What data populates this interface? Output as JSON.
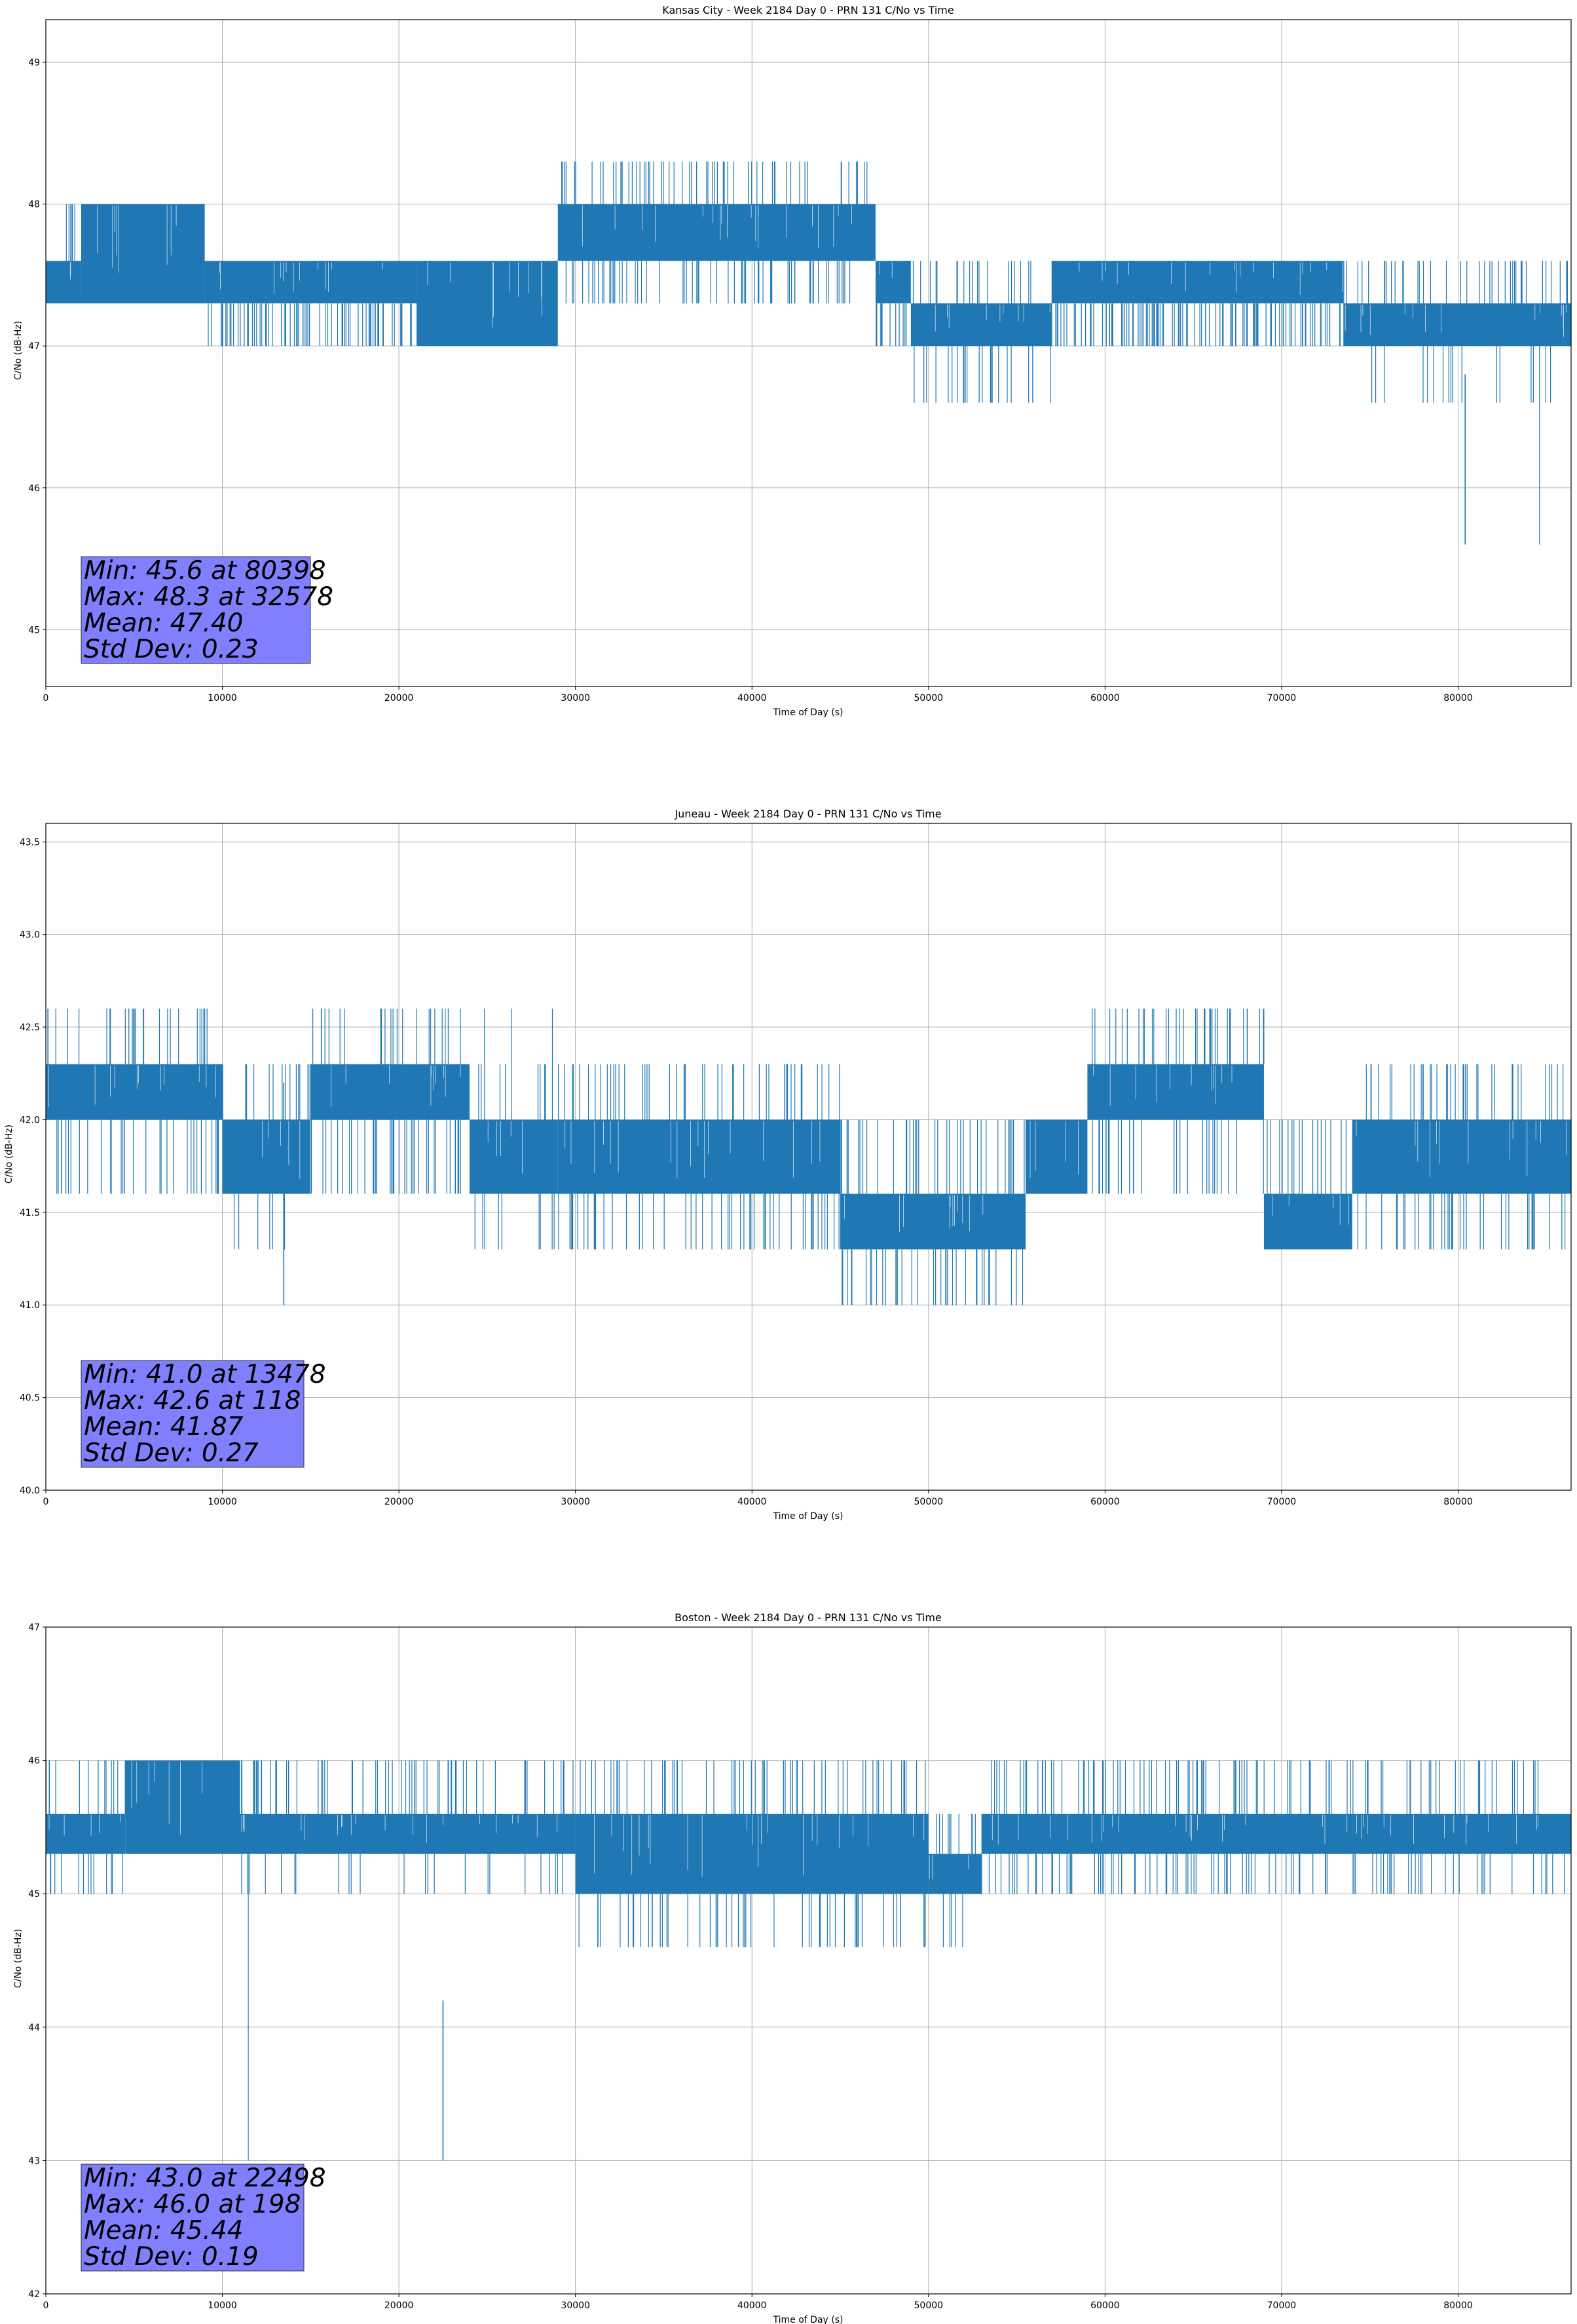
{
  "chart_data": [
    {
      "type": "line",
      "title": "Kansas City - Week 2184 Day 0 - PRN 131 C/No vs Time",
      "xlabel": "Time of Day (s)",
      "ylabel": "C/No (dB-Hz)",
      "xlim": [
        0,
        86400
      ],
      "ylim": [
        44.6,
        49.3
      ],
      "xticks": [
        0,
        10000,
        20000,
        30000,
        40000,
        50000,
        60000,
        70000,
        80000
      ],
      "yticks": [
        45,
        46,
        47,
        48,
        49
      ],
      "grid": true,
      "series_color": "#1f77b4",
      "stats": [
        "Min: 45.6 at 80398",
        "Max: 48.3 at 32578",
        "Mean: 47.40",
        "Std Dev: 0.23"
      ],
      "min_point": [
        80398,
        45.6
      ],
      "max_point": [
        32578,
        48.3
      ],
      "segments": [
        {
          "x": [
            0,
            2000
          ],
          "band": [
            47.3,
            47.6
          ],
          "spikes_up": [
            48.0
          ],
          "spikes_down": []
        },
        {
          "x": [
            2000,
            9000
          ],
          "band": [
            47.3,
            48.0
          ],
          "spikes_up": [],
          "spikes_down": []
        },
        {
          "x": [
            9000,
            21000
          ],
          "band": [
            47.3,
            47.6
          ],
          "spikes_up": [],
          "spikes_down": [
            47.0
          ]
        },
        {
          "x": [
            21000,
            29000
          ],
          "band": [
            47.0,
            47.6
          ],
          "spikes_up": [],
          "spikes_down": []
        },
        {
          "x": [
            29000,
            47000
          ],
          "band": [
            47.6,
            48.0
          ],
          "spikes_up": [
            48.3
          ],
          "spikes_down": [
            47.3
          ]
        },
        {
          "x": [
            47000,
            49000
          ],
          "band": [
            47.3,
            47.6
          ],
          "spikes_up": [],
          "spikes_down": [
            47.0
          ]
        },
        {
          "x": [
            49000,
            57000
          ],
          "band": [
            47.0,
            47.3
          ],
          "spikes_up": [
            47.6
          ],
          "spikes_down": [
            46.6
          ]
        },
        {
          "x": [
            57000,
            73500
          ],
          "band": [
            47.3,
            47.6
          ],
          "spikes_up": [],
          "spikes_down": [
            47.0
          ]
        },
        {
          "x": [
            73500,
            86400
          ],
          "band": [
            47.0,
            47.3
          ],
          "spikes_up": [
            47.6
          ],
          "spikes_down": [
            46.6,
            45.6
          ]
        }
      ]
    },
    {
      "type": "line",
      "title": "Juneau - Week 2184 Day 0 - PRN 131 C/No vs Time",
      "xlabel": "Time of Day (s)",
      "ylabel": "C/No (dB-Hz)",
      "xlim": [
        0,
        86400
      ],
      "ylim": [
        40.0,
        43.6
      ],
      "xticks": [
        0,
        10000,
        20000,
        30000,
        40000,
        50000,
        60000,
        70000,
        80000
      ],
      "yticks": [
        40.0,
        40.5,
        41.0,
        41.5,
        42.0,
        42.5,
        43.0,
        43.5
      ],
      "grid": true,
      "series_color": "#1f77b4",
      "stats": [
        "Min: 41.0 at 13478",
        "Max: 42.6 at 118",
        "Mean: 41.87",
        "Std Dev: 0.27"
      ],
      "min_point": [
        13478,
        41.0
      ],
      "max_point": [
        118,
        42.6
      ],
      "segments": [
        {
          "x": [
            0,
            10000
          ],
          "band": [
            42.0,
            42.3
          ],
          "spikes_up": [
            42.6
          ],
          "spikes_down": [
            41.6
          ]
        },
        {
          "x": [
            10000,
            15000
          ],
          "band": [
            41.6,
            42.0
          ],
          "spikes_up": [
            42.3
          ],
          "spikes_down": [
            41.3,
            41.0
          ]
        },
        {
          "x": [
            15000,
            24000
          ],
          "band": [
            42.0,
            42.3
          ],
          "spikes_up": [
            42.6
          ],
          "spikes_down": [
            41.6
          ]
        },
        {
          "x": [
            24000,
            29000
          ],
          "band": [
            41.6,
            42.0
          ],
          "spikes_up": [
            42.3,
            42.6
          ],
          "spikes_down": [
            41.3
          ]
        },
        {
          "x": [
            29000,
            45000
          ],
          "band": [
            41.6,
            42.0
          ],
          "spikes_up": [
            42.3
          ],
          "spikes_down": [
            41.3
          ]
        },
        {
          "x": [
            45000,
            55500
          ],
          "band": [
            41.3,
            41.6
          ],
          "spikes_up": [
            42.0
          ],
          "spikes_down": [
            41.0
          ]
        },
        {
          "x": [
            55500,
            59000
          ],
          "band": [
            41.6,
            42.0
          ],
          "spikes_up": [],
          "spikes_down": []
        },
        {
          "x": [
            59000,
            69000
          ],
          "band": [
            42.0,
            42.3
          ],
          "spikes_up": [
            42.6
          ],
          "spikes_down": [
            41.6
          ]
        },
        {
          "x": [
            69000,
            74000
          ],
          "band": [
            41.3,
            41.6
          ],
          "spikes_up": [
            42.0
          ],
          "spikes_down": []
        },
        {
          "x": [
            74000,
            86400
          ],
          "band": [
            41.6,
            42.0
          ],
          "spikes_up": [
            42.3
          ],
          "spikes_down": [
            41.3
          ]
        }
      ]
    },
    {
      "type": "line",
      "title": "Boston - Week 2184 Day 0 - PRN 131 C/No vs Time",
      "xlabel": "Time of Day (s)",
      "ylabel": "C/No (dB-Hz)",
      "xlim": [
        0,
        86400
      ],
      "ylim": [
        42,
        47
      ],
      "xticks": [
        0,
        10000,
        20000,
        30000,
        40000,
        50000,
        60000,
        70000,
        80000
      ],
      "yticks": [
        42,
        43,
        44,
        45,
        46,
        47
      ],
      "grid": true,
      "series_color": "#1f77b4",
      "stats": [
        "Min: 43.0 at 22498",
        "Max: 46.0 at 198",
        "Mean: 45.44",
        "Std Dev: 0.19"
      ],
      "min_point": [
        22498,
        43.0
      ],
      "max_point": [
        198,
        46.0
      ],
      "segments": [
        {
          "x": [
            0,
            4500
          ],
          "band": [
            45.3,
            45.6
          ],
          "spikes_up": [
            46.0
          ],
          "spikes_down": [
            45.0
          ]
        },
        {
          "x": [
            4500,
            11000
          ],
          "band": [
            45.3,
            46.0
          ],
          "spikes_up": [],
          "spikes_down": []
        },
        {
          "x": [
            11000,
            30000
          ],
          "band": [
            45.3,
            45.6
          ],
          "spikes_up": [
            46.0
          ],
          "spikes_down": [
            45.0,
            43.0
          ]
        },
        {
          "x": [
            30000,
            50000
          ],
          "band": [
            45.0,
            45.6
          ],
          "spikes_up": [
            46.0
          ],
          "spikes_down": [
            44.6
          ]
        },
        {
          "x": [
            50000,
            53000
          ],
          "band": [
            45.0,
            45.3
          ],
          "spikes_up": [
            45.6
          ],
          "spikes_down": [
            44.6
          ]
        },
        {
          "x": [
            53000,
            86400
          ],
          "band": [
            45.3,
            45.6
          ],
          "spikes_up": [
            46.0
          ],
          "spikes_down": [
            45.0
          ]
        }
      ]
    }
  ]
}
